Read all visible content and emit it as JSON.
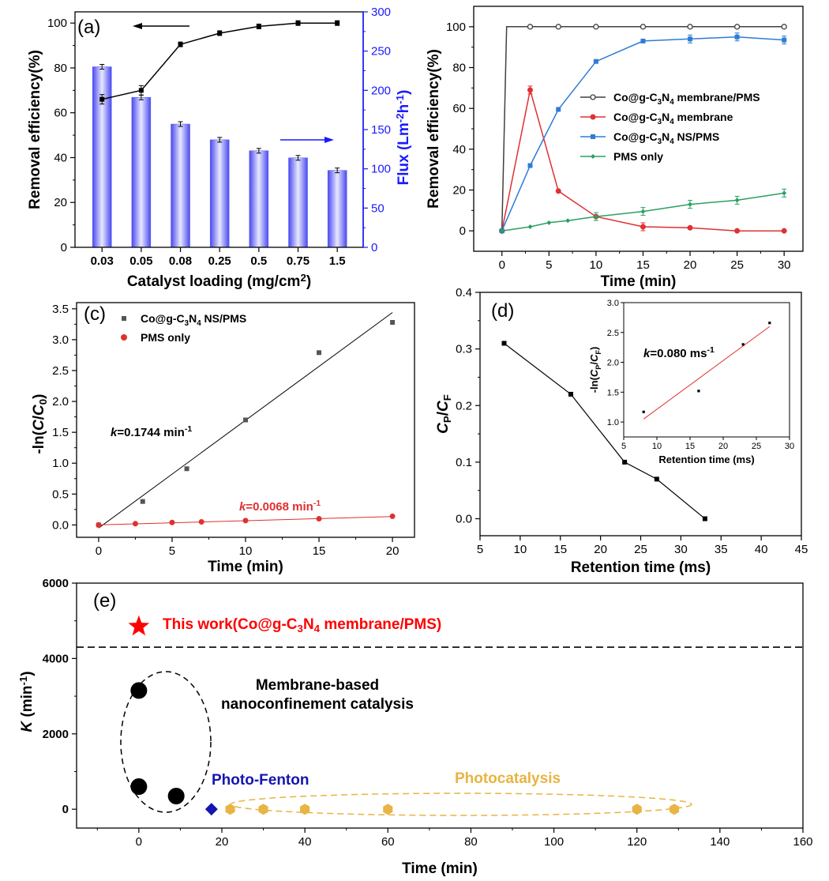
{
  "chart_data": [
    {
      "id": "a",
      "type": "bar+line",
      "panel_label": "(a)",
      "categories": [
        "0.03",
        "0.05",
        "0.08",
        "0.25",
        "0.5",
        "0.75",
        "1.5"
      ],
      "xlabel": "Catalyst loading (mg/cm2)",
      "ylabel": "Removal efficiency(%)",
      "ylabel_right": "Flux (Lm-2h-1)",
      "ylim": [
        0,
        105
      ],
      "ylim_right": [
        0,
        300
      ],
      "yticks": [
        "0",
        "20",
        "40",
        "60",
        "80",
        "100"
      ],
      "yticks_right": [
        "0",
        "50",
        "100",
        "150",
        "200",
        "250",
        "300"
      ],
      "line": {
        "name": "Removal efficiency",
        "values": [
          66,
          70,
          90.5,
          95.5,
          98.5,
          100,
          100
        ],
        "color": "#000000"
      },
      "bars": {
        "name": "Flux",
        "values": [
          230,
          191,
          157,
          137,
          123,
          114,
          98
        ],
        "color": "#6b6bff",
        "axis": "right"
      }
    },
    {
      "id": "b",
      "type": "line",
      "x": [
        0,
        0.5,
        3,
        6,
        10,
        15,
        20,
        25,
        30
      ],
      "xticks": [
        "0",
        "5",
        "10",
        "15",
        "20",
        "25",
        "30"
      ],
      "yticks": [
        "0",
        "20",
        "40",
        "60",
        "80",
        "100"
      ],
      "xlabel": "Time (min)",
      "ylabel": "Removal efficiency(%)",
      "xlim": [
        -3,
        32
      ],
      "ylim": [
        -10,
        110
      ],
      "series": [
        {
          "name": "Co@g-C3N4 membrane/PMS",
          "color": "#404040",
          "x": [
            0,
            0.5,
            3,
            6,
            10,
            15,
            20,
            25,
            30
          ],
          "values": [
            0,
            100,
            100,
            100,
            100,
            100,
            100,
            100,
            100
          ]
        },
        {
          "name": "Co@g-C3N4 membrane",
          "color": "#e03030",
          "x": [
            0,
            3,
            6,
            10,
            15,
            20,
            25,
            30
          ],
          "values": [
            0,
            69,
            19.5,
            7,
            2,
            1.5,
            0,
            0
          ]
        },
        {
          "name": "Co@g-C3N4 NS/PMS",
          "color": "#2f7bd6",
          "x": [
            0,
            3,
            6,
            10,
            15,
            20,
            25,
            30
          ],
          "values": [
            0,
            32,
            59.5,
            83,
            93,
            94,
            95,
            93.5
          ]
        },
        {
          "name": "PMS only",
          "color": "#2aa060",
          "x": [
            0,
            3,
            5,
            7,
            10,
            15,
            20,
            25,
            30
          ],
          "values": [
            0,
            2,
            4,
            5,
            7,
            9.5,
            13,
            15,
            18.5
          ]
        }
      ]
    },
    {
      "id": "c",
      "type": "scatter",
      "panel_label": "(c)",
      "xlabel": "Time (min)",
      "ylabel": "-ln(C/C0)",
      "xlim": [
        -1.5,
        21.5
      ],
      "ylim": [
        -0.2,
        3.6
      ],
      "xticks": [
        "0",
        "5",
        "10",
        "15",
        "20"
      ],
      "yticks": [
        "0.0",
        "0.5",
        "1.0",
        "1.5",
        "2.0",
        "2.5",
        "3.0",
        "3.5"
      ],
      "series": [
        {
          "name": "Co@g-C3N4 NS/PMS",
          "color": "#555555",
          "x": [
            0,
            3,
            6,
            10,
            15,
            20
          ],
          "values": [
            0.0,
            0.38,
            0.91,
            1.7,
            2.79,
            3.28
          ],
          "fit": [
            [
              0,
              -0.05
            ],
            [
              20,
              3.44
            ]
          ],
          "k_label": "k=0.1744 min-1"
        },
        {
          "name": "PMS only",
          "color": "#e03030",
          "x": [
            0,
            2.5,
            5,
            7,
            10,
            15,
            20
          ],
          "values": [
            0.0,
            0.02,
            0.04,
            0.05,
            0.07,
            0.1,
            0.14
          ],
          "fit": [
            [
              0,
              0.0
            ],
            [
              20,
              0.136
            ]
          ],
          "k_label": "k=0.0068 min-1"
        }
      ]
    },
    {
      "id": "d",
      "type": "line",
      "panel_label": "(d)",
      "xlabel": "Retention time (ms)",
      "ylabel": "CP/CF",
      "xlim": [
        5,
        45
      ],
      "ylim": [
        -0.03,
        0.4
      ],
      "xticks": [
        "5",
        "10",
        "15",
        "20",
        "25",
        "30",
        "35",
        "40",
        "45"
      ],
      "yticks": [
        "0.0",
        "0.1",
        "0.2",
        "0.3",
        "0.4"
      ],
      "x": [
        8,
        16.3,
        23,
        27,
        33
      ],
      "values": [
        0.31,
        0.22,
        0.1,
        0.07,
        0.0
      ],
      "inset": {
        "type": "scatter",
        "xlabel": "Retention time (ms)",
        "ylabel": "-ln(CP/CF)",
        "xlim": [
          5,
          30
        ],
        "ylim": [
          0.75,
          3.0
        ],
        "xticks": [
          "5",
          "10",
          "15",
          "20",
          "25",
          "30"
        ],
        "yticks": [
          "1.0",
          "1.5",
          "2.0",
          "2.5",
          "3.0"
        ],
        "x": [
          8,
          16.3,
          23,
          27
        ],
        "values": [
          1.17,
          1.52,
          2.3,
          2.66
        ],
        "fit": [
          [
            8,
            1.05
          ],
          [
            27,
            2.6
          ]
        ],
        "k_label": "k=0.080 ms-1"
      }
    },
    {
      "id": "e",
      "type": "scatter",
      "panel_label": "(e)",
      "xlabel": "Time (min)",
      "ylabel": "K (min-1)",
      "xlim": [
        -15,
        160
      ],
      "ylim": [
        -500,
        6000
      ],
      "xticks": [
        "0",
        "20",
        "40",
        "60",
        "80",
        "100",
        "120",
        "140",
        "160"
      ],
      "yticks": [
        "0",
        "2000",
        "4000",
        "6000"
      ],
      "dashed_line_y": 4300,
      "this_work": {
        "label": "This work(Co@g-C3N4 membrane/PMS)",
        "x": 0,
        "y": 4850,
        "color": "#ff0000"
      },
      "groups": [
        {
          "name": "Membrane-based nanoconfinement catalysis",
          "color": "#000000",
          "x": [
            0,
            0,
            9
          ],
          "values": [
            3150,
            600,
            350
          ]
        },
        {
          "name": "Photo-Fenton",
          "color": "#1515b0",
          "x": [
            17.5
          ],
          "values": [
            0
          ]
        },
        {
          "name": "Photocatalysis",
          "color": "#e8b443",
          "x": [
            22,
            30,
            40,
            60,
            120,
            129
          ],
          "values": [
            0,
            0,
            0,
            0,
            0,
            0
          ]
        }
      ]
    }
  ]
}
